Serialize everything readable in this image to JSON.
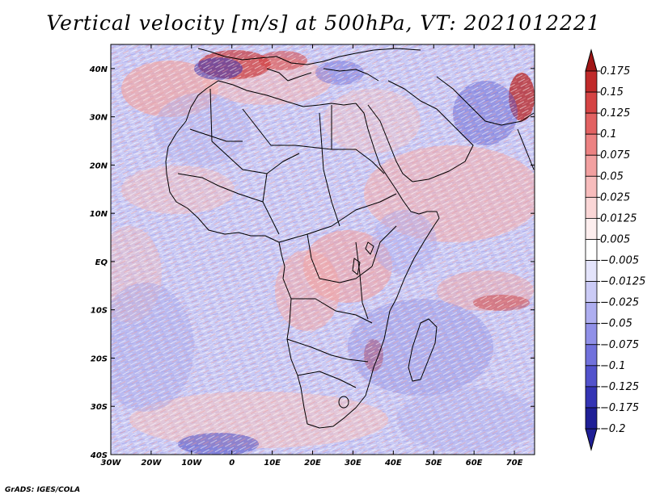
{
  "title": "Vertical velocity [m/s] at 500hPa, VT: 2021012221",
  "credit": "GrADS: IGES/COLA",
  "map": {
    "lon_range": [
      -30,
      75
    ],
    "lat_range": [
      -40,
      45
    ],
    "lon_ticks": [
      {
        "value": -30,
        "label": "30W"
      },
      {
        "value": -20,
        "label": "20W"
      },
      {
        "value": -10,
        "label": "10W"
      },
      {
        "value": 0,
        "label": "0"
      },
      {
        "value": 10,
        "label": "10E"
      },
      {
        "value": 20,
        "label": "20E"
      },
      {
        "value": 30,
        "label": "30E"
      },
      {
        "value": 40,
        "label": "40E"
      },
      {
        "value": 50,
        "label": "50E"
      },
      {
        "value": 60,
        "label": "60E"
      },
      {
        "value": 70,
        "label": "70E"
      }
    ],
    "lat_ticks": [
      {
        "value": 40,
        "label": "40N"
      },
      {
        "value": 30,
        "label": "30N"
      },
      {
        "value": 20,
        "label": "20N"
      },
      {
        "value": 10,
        "label": "10N"
      },
      {
        "value": 0,
        "label": "EQ"
      },
      {
        "value": -10,
        "label": "10S"
      },
      {
        "value": -20,
        "label": "20S"
      },
      {
        "value": -30,
        "label": "30S"
      },
      {
        "value": -40,
        "label": "40S"
      }
    ]
  },
  "colorbar": {
    "levels": [
      {
        "label": "0.175",
        "color": "#a01616"
      },
      {
        "label": "0.15",
        "color": "#c02a2a"
      },
      {
        "label": "0.125",
        "color": "#d54444"
      },
      {
        "label": "0.1",
        "color": "#e26262"
      },
      {
        "label": "0.075",
        "color": "#ec8282"
      },
      {
        "label": "0.05",
        "color": "#f2a0a0"
      },
      {
        "label": "0.025",
        "color": "#f7bcbc"
      },
      {
        "label": "0.0125",
        "color": "#fad6d6"
      },
      {
        "label": "0.005",
        "color": "#fdeeee"
      },
      {
        "label": "−0.005",
        "color": "#ffffff"
      },
      {
        "label": "−0.0125",
        "color": "#e4e4fb"
      },
      {
        "label": "−0.025",
        "color": "#cbcbf6"
      },
      {
        "label": "−0.05",
        "color": "#aeaef0"
      },
      {
        "label": "−0.075",
        "color": "#9090e8"
      },
      {
        "label": "−0.1",
        "color": "#7171dc"
      },
      {
        "label": "−0.125",
        "color": "#5252cc"
      },
      {
        "label": "−0.175",
        "color": "#3434b4"
      },
      {
        "label": "−0.2",
        "color": "#1f1f96"
      }
    ],
    "top_color": "#a01616",
    "bottom_color": "#1f1f96"
  }
}
